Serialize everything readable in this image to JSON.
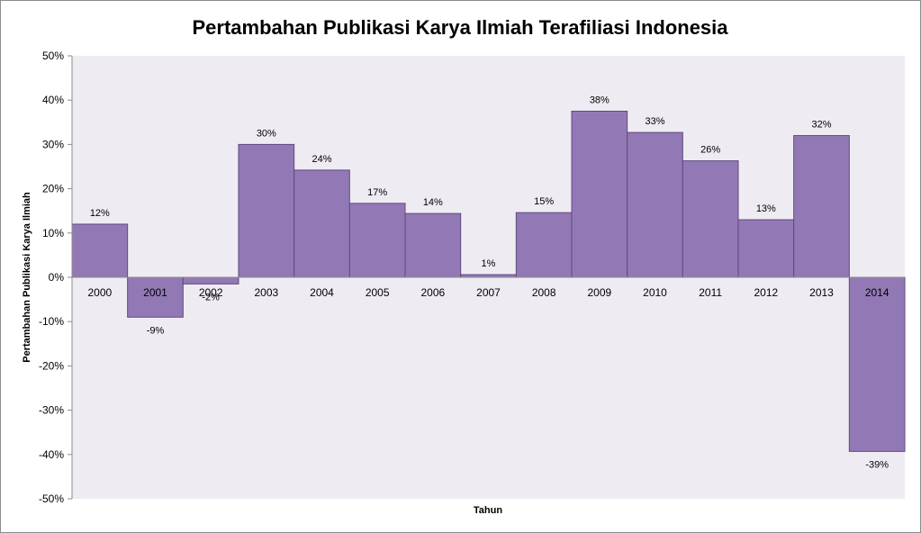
{
  "chart_data": {
    "type": "bar",
    "title": "Pertambahan Publikasi Karya Ilmiah Terafiliasi Indonesia",
    "xlabel": "Tahun",
    "ylabel": "Pertambahan Publikasi Karya Ilmiah",
    "categories": [
      "2000",
      "2001",
      "2002",
      "2003",
      "2004",
      "2005",
      "2006",
      "2007",
      "2008",
      "2009",
      "2010",
      "2011",
      "2012",
      "2013",
      "2014"
    ],
    "values": [
      12,
      -9,
      -1.5,
      30,
      24.2,
      16.7,
      14.4,
      0.6,
      14.6,
      37.5,
      32.7,
      26.3,
      13,
      32,
      -39.3
    ],
    "data_labels": [
      "12%",
      "-9%",
      "-2%",
      "30%",
      "24%",
      "17%",
      "14%",
      "1%",
      "15%",
      "38%",
      "33%",
      "26%",
      "13%",
      "32%",
      "-39%"
    ],
    "ylim": [
      -50,
      50
    ],
    "y_ticks": [
      50,
      40,
      30,
      20,
      10,
      0,
      -10,
      -20,
      -30,
      -40,
      -50
    ],
    "y_tick_labels": [
      "50%",
      "40%",
      "30%",
      "20%",
      "10%",
      "0%",
      "-10%",
      "-20%",
      "-30%",
      "-40%",
      "-50%"
    ],
    "grid": false,
    "legend": "none",
    "colors": {
      "bar_fill": "#9279b5",
      "bar_stroke": "#5d4a80",
      "plot_background": "#efebf2",
      "axis": "#8c8c8c"
    }
  }
}
